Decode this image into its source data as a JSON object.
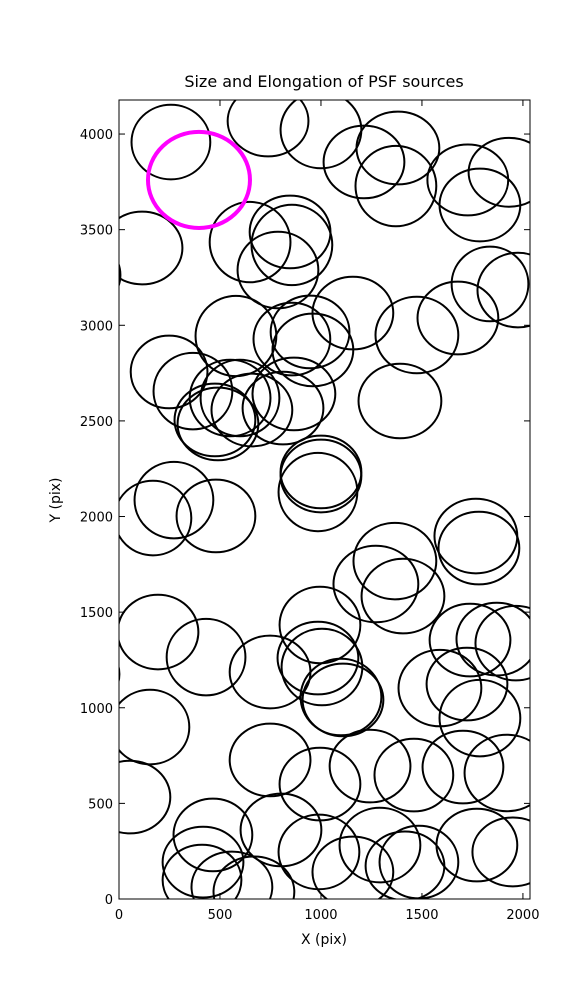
{
  "chart_data": {
    "type": "ellipse",
    "title": "Size and Elongation of PSF sources",
    "xlabel": "X (pix)",
    "ylabel": "Y (pix)",
    "xlim": [
      0,
      2035
    ],
    "ylim": [
      0,
      4178
    ],
    "xticks": [
      0,
      500,
      1000,
      1500,
      2000
    ],
    "yticks": [
      0,
      500,
      1000,
      1500,
      2000,
      2500,
      3000,
      3500,
      4000
    ],
    "color": "#000000",
    "x": [
      257,
      738,
      1000,
      1213,
      1381,
      1371,
      1727,
      1787,
      1931,
      114,
      -193,
      649,
      847,
      856,
      787,
      1837,
      1975,
      579,
      946,
      1158,
      960,
      856,
      1475,
      1678,
      248,
      366,
      550,
      599,
      490,
      475,
      658,
      812,
      866,
      1391,
      1000,
      1000,
      985,
      272,
      168,
      480,
      1767,
      1782,
      1366,
      1272,
      1406,
      193,
      431,
      748,
      995,
      985,
      1005,
      1109,
      1099,
      -198,
      153,
      1738,
      1871,
      1965,
      1589,
      1723,
      1787,
      748,
      995,
      1243,
      1460,
      1703,
      1921,
      54,
      465,
      802,
      990,
      1292,
      1158,
      1485,
      1416,
      1772,
      1950,
      416,
      411,
      559,
      668
    ],
    "y": [
      3958,
      4068,
      4021,
      3854,
      3927,
      3728,
      3760,
      3629,
      3800,
      3404,
      3263,
      3435,
      3488,
      3420,
      3289,
      3216,
      3184,
      2944,
      2965,
      3064,
      2871,
      2928,
      2949,
      3038,
      2756,
      2656,
      2620,
      2620,
      2484,
      2505,
      2557,
      2567,
      2641,
      2604,
      2233,
      2212,
      2128,
      2086,
      1992,
      2003,
      1898,
      1835,
      1767,
      1647,
      1584,
      1396,
      1265,
      1187,
      1433,
      1260,
      1213,
      1041,
      1056,
      1176,
      899,
      1354,
      1359,
      1338,
      1103,
      1124,
      946,
      727,
      601,
      695,
      648,
      690,
      659,
      533,
      335,
      361,
      246,
      282,
      141,
      193,
      173,
      282,
      246,
      193,
      99,
      63,
      37
    ],
    "widths": [
      390,
      400,
      400,
      400,
      410,
      400,
      400,
      400,
      400,
      400,
      400,
      400,
      400,
      400,
      400,
      380,
      400,
      400,
      390,
      400,
      400,
      380,
      410,
      400,
      380,
      390,
      400,
      390,
      400,
      400,
      400,
      400,
      410,
      410,
      400,
      400,
      390,
      390,
      380,
      390,
      410,
      400,
      410,
      420,
      410,
      400,
      390,
      400,
      400,
      400,
      400,
      400,
      400,
      400,
      390,
      400,
      400,
      400,
      410,
      400,
      400,
      400,
      400,
      400,
      390,
      400,
      420,
      400,
      390,
      400,
      400,
      400,
      400,
      390,
      390,
      400,
      400,
      400,
      390,
      400,
      400
    ],
    "heights": [
      390,
      370,
      400,
      380,
      380,
      420,
      370,
      380,
      360,
      380,
      380,
      420,
      380,
      420,
      400,
      390,
      390,
      420,
      380,
      380,
      380,
      380,
      400,
      380,
      380,
      400,
      400,
      400,
      380,
      380,
      380,
      380,
      380,
      390,
      380,
      380,
      410,
      400,
      390,
      380,
      390,
      380,
      400,
      400,
      390,
      390,
      400,
      380,
      400,
      380,
      400,
      380,
      400,
      390,
      390,
      380,
      380,
      390,
      400,
      380,
      400,
      380,
      380,
      380,
      380,
      380,
      400,
      380,
      380,
      380,
      390,
      390,
      370,
      380,
      360,
      380,
      360,
      370,
      370,
      370,
      370
    ],
    "highlight": {
      "x": 396,
      "y": 3760,
      "width": 505,
      "height": 502,
      "color": "#ff00ff"
    }
  }
}
